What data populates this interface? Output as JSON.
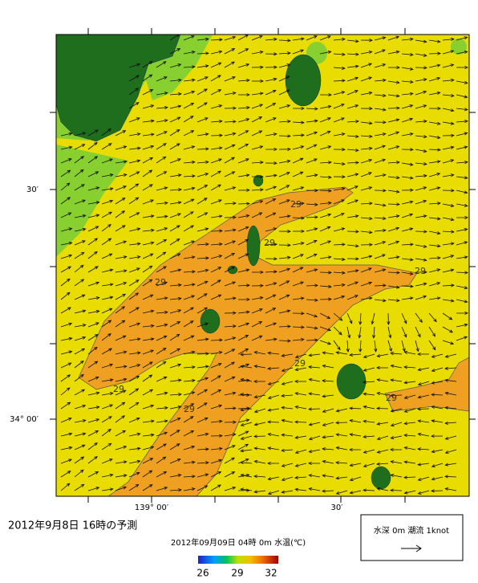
{
  "header": {
    "title": "2012年9月8日 16時の予測",
    "subtitle": "2012年09月09日 04時 0m 水温(℃)"
  },
  "colorbar": {
    "labels": [
      "26",
      "29",
      "32"
    ]
  },
  "axes": {
    "y_labels": [
      "30′",
      "34° 00′"
    ],
    "x_labels": [
      "139° 00′",
      "30′"
    ]
  },
  "contour_labels": [
    "29",
    "29",
    "29",
    "29",
    "29",
    "29",
    "29",
    "29"
  ],
  "legend": {
    "text": "水深 0m 潮流 1knot"
  }
}
